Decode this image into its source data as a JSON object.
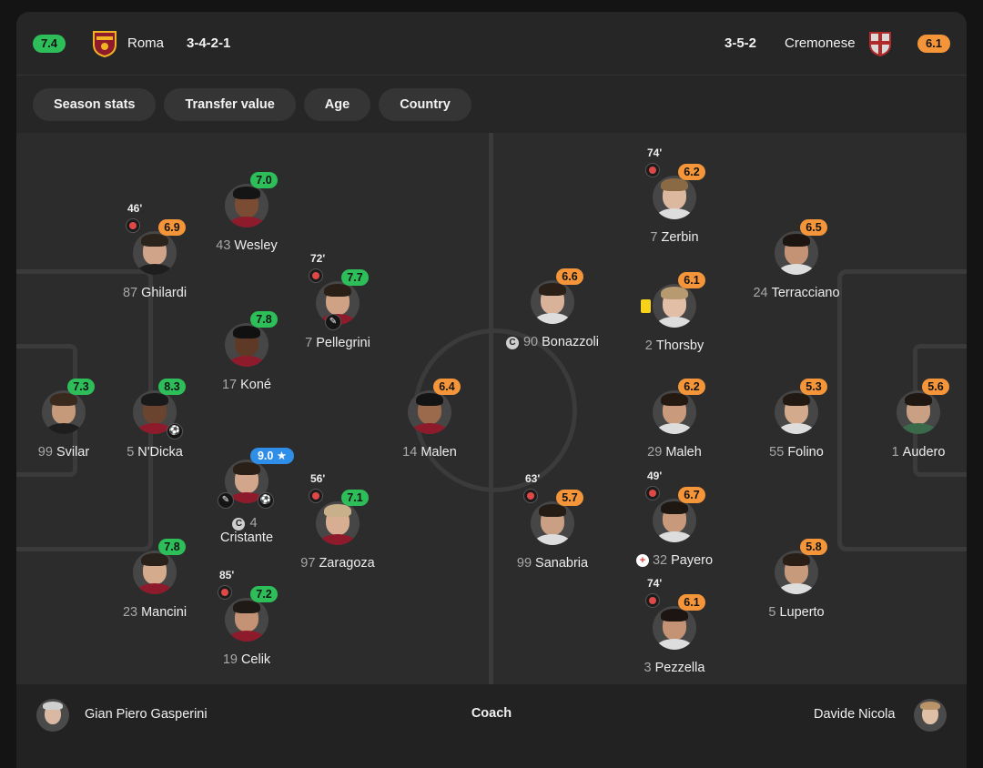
{
  "header": {
    "home": {
      "rating": "7.4",
      "name": "Roma",
      "formation": "3-4-2-1",
      "crest_icon": "roma-crest-icon"
    },
    "away": {
      "rating": "6.1",
      "name": "Cremonese",
      "formation": "3-5-2",
      "crest_icon": "cremonese-crest-icon"
    }
  },
  "filters": [
    "Season stats",
    "Transfer value",
    "Age",
    "Country"
  ],
  "players": {
    "svilar": {
      "number": "99",
      "name": "Svilar",
      "rating": "7.3"
    },
    "ndicka": {
      "number": "5",
      "name": "N'Dicka",
      "rating": "8.3"
    },
    "ghilardi": {
      "number": "87",
      "name": "Ghilardi",
      "rating": "6.9",
      "sub_time": "46'"
    },
    "mancini": {
      "number": "23",
      "name": "Mancini",
      "rating": "7.8"
    },
    "wesley": {
      "number": "43",
      "name": "Wesley",
      "rating": "7.0"
    },
    "kone": {
      "number": "17",
      "name": "Koné",
      "rating": "7.8"
    },
    "cristante": {
      "number": "4",
      "name": "Cristante",
      "rating": "9.0"
    },
    "celik": {
      "number": "19",
      "name": "Celik",
      "rating": "7.2",
      "sub_time": "85'"
    },
    "pellegrini": {
      "number": "7",
      "name": "Pellegrini",
      "rating": "7.7",
      "sub_time": "72'"
    },
    "zaragoza": {
      "number": "97",
      "name": "Zaragoza",
      "rating": "7.1",
      "sub_time": "56'"
    },
    "malen": {
      "number": "14",
      "name": "Malen",
      "rating": "6.4"
    },
    "bonazzoli": {
      "number": "90",
      "name": "Bonazzoli",
      "rating": "6.6"
    },
    "sanabria": {
      "number": "99",
      "name": "Sanabria",
      "rating": "5.7",
      "sub_time": "63'"
    },
    "zerbin": {
      "number": "7",
      "name": "Zerbin",
      "rating": "6.2",
      "sub_time": "74'"
    },
    "thorsby": {
      "number": "2",
      "name": "Thorsby",
      "rating": "6.1"
    },
    "maleh": {
      "number": "29",
      "name": "Maleh",
      "rating": "6.2"
    },
    "payero": {
      "number": "32",
      "name": "Payero",
      "rating": "6.7",
      "sub_time": "49'"
    },
    "pezzella": {
      "number": "3",
      "name": "Pezzella",
      "rating": "6.1",
      "sub_time": "74'"
    },
    "terracciano": {
      "number": "24",
      "name": "Terracciano",
      "rating": "6.5"
    },
    "folino": {
      "number": "55",
      "name": "Folino",
      "rating": "5.3"
    },
    "luperto": {
      "number": "5",
      "name": "Luperto",
      "rating": "5.8"
    },
    "audero": {
      "number": "1",
      "name": "Audero",
      "rating": "5.6"
    }
  },
  "captain_mark": "C",
  "coach": {
    "label": "Coach",
    "home": "Gian Piero Gasperini",
    "away": "Davide Nicola"
  },
  "colors": {
    "good": "#2dbe5a",
    "average": "#f5953a",
    "top": "#2f8fe8",
    "background": "#262626"
  }
}
